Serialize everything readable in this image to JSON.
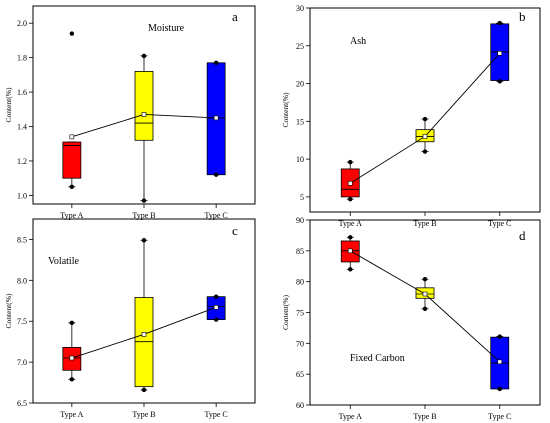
{
  "chart_data": [
    {
      "type": "box",
      "label": "a",
      "title": "Moisture",
      "xlabel": "",
      "ylabel": "Content(%)",
      "ylim": [
        0.95,
        2.1
      ],
      "yticks": [
        1.0,
        1.2,
        1.4,
        1.6,
        1.8,
        2.0
      ],
      "categories": [
        "Type A",
        "Type B",
        "Type C"
      ],
      "colors": [
        "#ff0000",
        "#ffff00",
        "#0000ff"
      ],
      "boxes": [
        {
          "q1": 1.1,
          "median": 1.29,
          "q3": 1.31,
          "min": 1.05,
          "max": 1.31,
          "mean": 1.34,
          "outliers": [
            1.94
          ],
          "whisker_dots": [
            1.05
          ]
        },
        {
          "q1": 1.32,
          "median": 1.42,
          "q3": 1.72,
          "min": 0.97,
          "max": 1.81,
          "mean": 1.47,
          "outliers": [],
          "whisker_dots": [
            0.97,
            1.81
          ]
        },
        {
          "q1": 1.12,
          "median": 1.45,
          "q3": 1.77,
          "min": 1.12,
          "max": 1.77,
          "mean": 1.45,
          "outliers": [],
          "whisker_dots": [
            1.12,
            1.77
          ]
        }
      ]
    },
    {
      "type": "box",
      "label": "b",
      "title": "Ash",
      "xlabel": "",
      "ylabel": "Content(%)",
      "ylim": [
        3,
        30
      ],
      "yticks": [
        5,
        10,
        15,
        20,
        25,
        30
      ],
      "categories": [
        "Type A",
        "Type B",
        "Type C"
      ],
      "colors": [
        "#ff0000",
        "#ffff00",
        "#0000ff"
      ],
      "boxes": [
        {
          "q1": 5.0,
          "median": 6.0,
          "q3": 8.7,
          "min": 4.7,
          "max": 9.6,
          "mean": 6.8,
          "outliers": [],
          "whisker_dots": [
            4.7,
            9.6
          ]
        },
        {
          "q1": 12.3,
          "median": 13.0,
          "q3": 13.9,
          "min": 11.0,
          "max": 15.3,
          "mean": 13.0,
          "outliers": [],
          "whisker_dots": [
            11.0,
            15.3
          ]
        },
        {
          "q1": 20.4,
          "median": 24.2,
          "q3": 27.9,
          "min": 20.3,
          "max": 28.0,
          "mean": 24.0,
          "outliers": [],
          "whisker_dots": [
            20.3,
            28.0
          ]
        }
      ]
    },
    {
      "type": "box",
      "label": "c",
      "title": "Volatile",
      "xlabel": "",
      "ylabel": "Content(%)",
      "ylim": [
        6.5,
        8.75
      ],
      "yticks": [
        6.5,
        7.0,
        7.5,
        8.0,
        8.5
      ],
      "categories": [
        "Type A",
        "Type B",
        "Type C"
      ],
      "colors": [
        "#ff0000",
        "#ffff00",
        "#0000ff"
      ],
      "boxes": [
        {
          "q1": 6.9,
          "median": 7.05,
          "q3": 7.18,
          "min": 6.79,
          "max": 7.48,
          "mean": 7.05,
          "outliers": [],
          "whisker_dots": [
            6.79,
            7.48
          ]
        },
        {
          "q1": 6.7,
          "median": 7.25,
          "q3": 7.79,
          "min": 6.66,
          "max": 8.49,
          "mean": 7.34,
          "outliers": [],
          "whisker_dots": [
            6.66,
            8.49
          ]
        },
        {
          "q1": 7.52,
          "median": 7.68,
          "q3": 7.8,
          "min": 7.52,
          "max": 7.8,
          "mean": 7.67,
          "outliers": [],
          "whisker_dots": [
            7.52,
            7.8
          ]
        }
      ]
    },
    {
      "type": "box",
      "label": "d",
      "title": "Fixed Carbon",
      "xlabel": "",
      "ylabel": "Content(%)",
      "ylim": [
        60,
        90
      ],
      "yticks": [
        60,
        65,
        70,
        75,
        80,
        85,
        90
      ],
      "categories": [
        "Type A",
        "Type B",
        "Type C"
      ],
      "colors": [
        "#ff0000",
        "#ffff00",
        "#0000ff"
      ],
      "boxes": [
        {
          "q1": 83.2,
          "median": 85.0,
          "q3": 86.6,
          "min": 82.0,
          "max": 87.2,
          "mean": 85.0,
          "outliers": [],
          "whisker_dots": [
            82.0,
            87.2
          ]
        },
        {
          "q1": 77.3,
          "median": 78.0,
          "q3": 79.0,
          "min": 75.6,
          "max": 80.4,
          "mean": 78.0,
          "outliers": [],
          "whisker_dots": [
            75.6,
            80.4
          ]
        },
        {
          "q1": 62.6,
          "median": 66.8,
          "q3": 71.0,
          "min": 62.6,
          "max": 71.1,
          "mean": 67.0,
          "outliers": [],
          "whisker_dots": [
            62.6,
            71.1
          ]
        }
      ]
    }
  ]
}
